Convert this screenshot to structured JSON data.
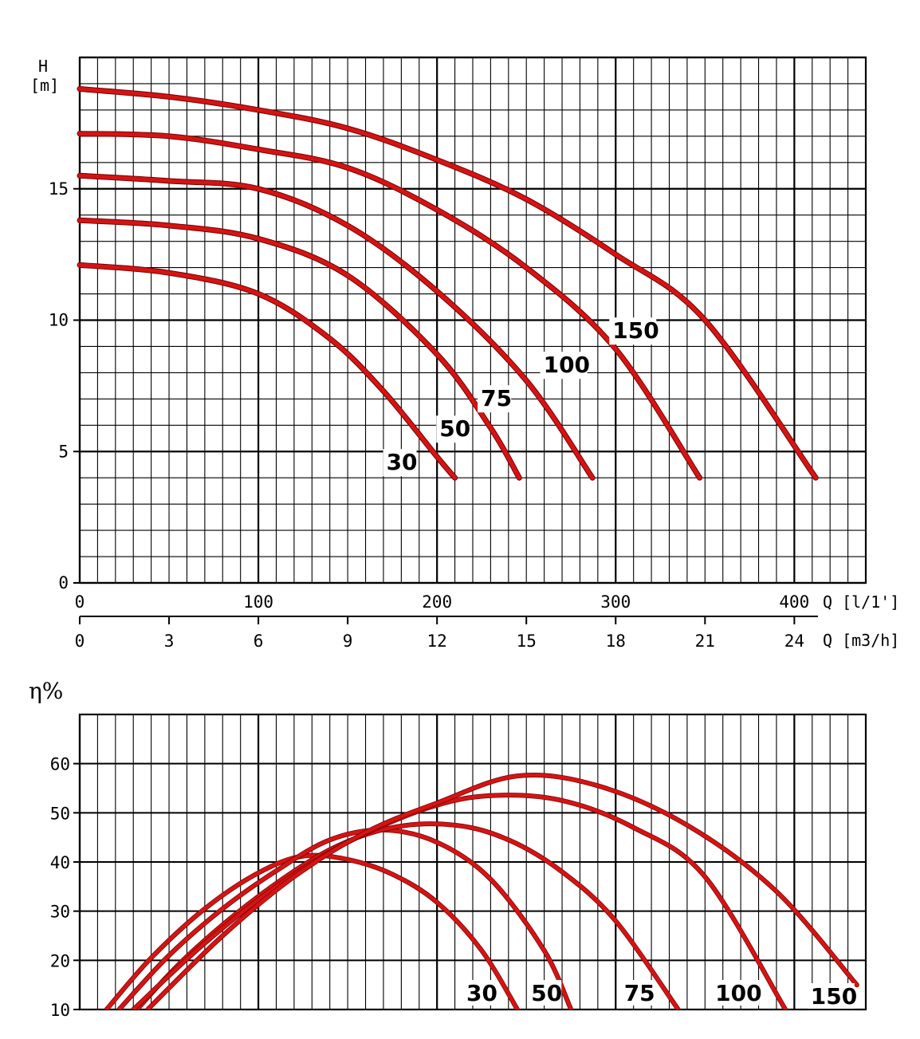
{
  "chart_data": [
    {
      "type": "line",
      "title": "",
      "ylabel": "H",
      "ylabel_unit": "[m]",
      "xlabel_primary": "Q [l/1']",
      "xlabel_secondary": "Q [m3/h]",
      "xlim": [
        0,
        440
      ],
      "ylim": [
        0,
        20
      ],
      "grid": true,
      "x_ticks": [
        "0",
        "100",
        "200",
        "300",
        "400"
      ],
      "x_ticks_secondary": [
        "0",
        "3",
        "6",
        "9",
        "12",
        "15",
        "18",
        "21",
        "24"
      ],
      "y_ticks": [
        "0",
        "5",
        "10",
        "15"
      ],
      "series_color": "#d41414",
      "series": [
        {
          "name": "30",
          "x": [
            0,
            50,
            100,
            140,
            170,
            200,
            210
          ],
          "y": [
            12.1,
            11.8,
            11.0,
            9.3,
            7.3,
            4.8,
            4.0
          ]
        },
        {
          "name": "50",
          "x": [
            0,
            50,
            100,
            150,
            200,
            230,
            246
          ],
          "y": [
            13.8,
            13.6,
            13.1,
            11.7,
            8.7,
            5.9,
            4.0
          ]
        },
        {
          "name": "75",
          "x": [
            0,
            50,
            100,
            150,
            200,
            250,
            287
          ],
          "y": [
            15.5,
            15.3,
            15.0,
            13.6,
            11.1,
            7.7,
            4.0
          ]
        },
        {
          "name": "100",
          "x": [
            0,
            50,
            100,
            150,
            200,
            250,
            300,
            347
          ],
          "y": [
            17.1,
            17.0,
            16.5,
            15.8,
            14.2,
            12.0,
            8.9,
            4.0
          ]
        },
        {
          "name": "150",
          "x": [
            0,
            50,
            100,
            150,
            200,
            250,
            300,
            350,
            412
          ],
          "y": [
            18.8,
            18.5,
            18.0,
            17.3,
            16.1,
            14.6,
            12.5,
            10.0,
            4.0
          ]
        }
      ]
    },
    {
      "type": "line",
      "title": "",
      "ylabel": "η%",
      "xlim": [
        0,
        440
      ],
      "ylim": [
        10,
        70
      ],
      "grid": true,
      "y_ticks": [
        "10",
        "20",
        "30",
        "40",
        "50",
        "60"
      ],
      "series_color": "#d41414",
      "series": [
        {
          "name": "30",
          "x": [
            15,
            40,
            70,
            100,
            125,
            150,
            175,
            200,
            225,
            245
          ],
          "y": [
            10,
            20.5,
            30.5,
            37.8,
            41.2,
            40.5,
            37.5,
            31.8,
            22,
            10
          ]
        },
        {
          "name": "50",
          "x": [
            22,
            50,
            80,
            110,
            140,
            170,
            200,
            230,
            260,
            275
          ],
          "y": [
            10,
            21,
            30.5,
            38.2,
            44.5,
            46.5,
            44,
            36.5,
            22,
            10
          ]
        },
        {
          "name": "75",
          "x": [
            32,
            60,
            100,
            140,
            175,
            210,
            240,
            270,
            300,
            335
          ],
          "y": [
            10,
            20.8,
            33,
            42.5,
            47,
            47.5,
            44.5,
            38,
            28,
            10
          ]
        },
        {
          "name": "100",
          "x": [
            30,
            70,
            110,
            150,
            195,
            230,
            270,
            310,
            350,
            395
          ],
          "y": [
            10,
            23.5,
            35,
            44,
            51,
            53.5,
            52.5,
            47,
            37,
            10
          ]
        },
        {
          "name": "150",
          "x": [
            38,
            80,
            120,
            160,
            200,
            245,
            290,
            340,
            390,
            435
          ],
          "y": [
            10,
            25,
            37,
            46,
            52,
            57.5,
            55.5,
            47.5,
            34,
            15
          ]
        }
      ]
    }
  ]
}
